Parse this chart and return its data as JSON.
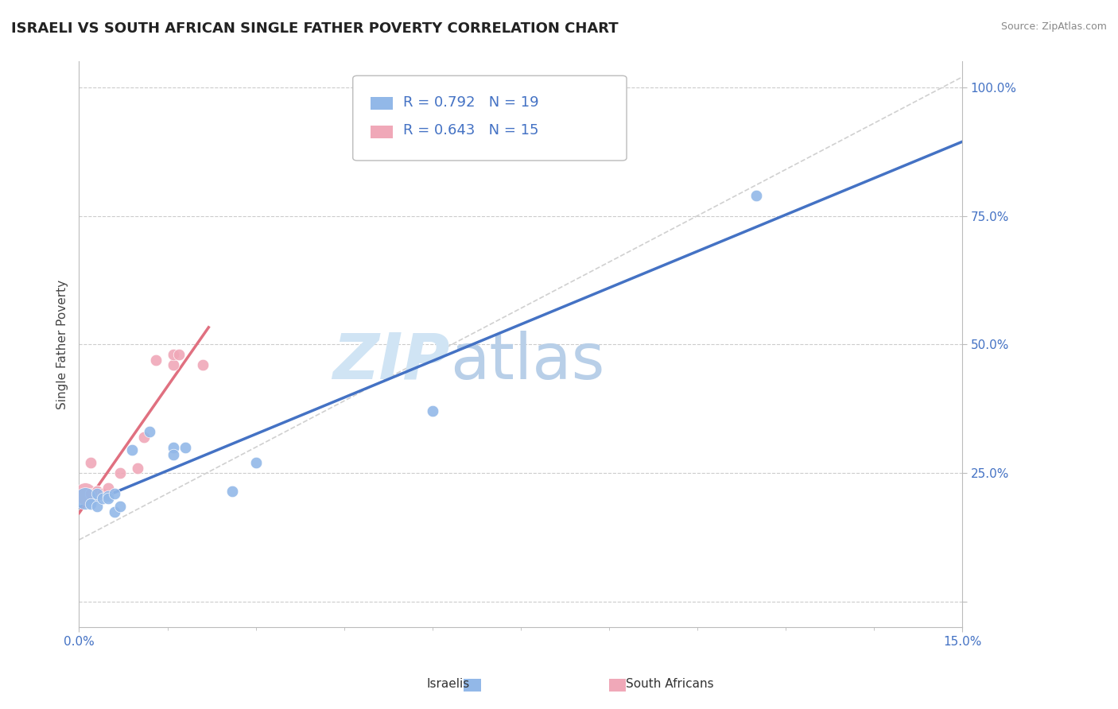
{
  "title": "ISRAELI VS SOUTH AFRICAN SINGLE FATHER POVERTY CORRELATION CHART",
  "source": "Source: ZipAtlas.com",
  "ylabel": "Single Father Poverty",
  "xlim": [
    0.0,
    0.15
  ],
  "ylim": [
    -0.05,
    1.05
  ],
  "yticks": [
    0.0,
    0.25,
    0.5,
    0.75,
    1.0
  ],
  "ytick_labels": [
    "",
    "25.0%",
    "50.0%",
    "75.0%",
    "100.0%"
  ],
  "xtick_labels": [
    "0.0%",
    "15.0%"
  ],
  "legend_r1": "R = 0.792",
  "legend_n1": "N = 19",
  "legend_r2": "R = 0.643",
  "legend_n2": "N = 15",
  "israeli_color": "#92b8e8",
  "south_african_color": "#f0a8b8",
  "trend_line_color_israeli": "#4472c4",
  "trend_line_color_sa": "#e07080",
  "diagonal_color": "#d0d0d0",
  "background": "#ffffff",
  "israeli_points": [
    [
      0.001,
      0.2
    ],
    [
      0.002,
      0.19
    ],
    [
      0.003,
      0.185
    ],
    [
      0.003,
      0.21
    ],
    [
      0.004,
      0.2
    ],
    [
      0.005,
      0.205
    ],
    [
      0.005,
      0.2
    ],
    [
      0.006,
      0.21
    ],
    [
      0.006,
      0.175
    ],
    [
      0.007,
      0.185
    ],
    [
      0.009,
      0.295
    ],
    [
      0.012,
      0.33
    ],
    [
      0.016,
      0.3
    ],
    [
      0.016,
      0.285
    ],
    [
      0.018,
      0.3
    ],
    [
      0.026,
      0.215
    ],
    [
      0.03,
      0.27
    ],
    [
      0.06,
      0.37
    ],
    [
      0.115,
      0.79
    ]
  ],
  "sa_points": [
    [
      0.001,
      0.21
    ],
    [
      0.002,
      0.21
    ],
    [
      0.002,
      0.27
    ],
    [
      0.003,
      0.215
    ],
    [
      0.003,
      0.215
    ],
    [
      0.004,
      0.21
    ],
    [
      0.005,
      0.22
    ],
    [
      0.007,
      0.25
    ],
    [
      0.01,
      0.26
    ],
    [
      0.011,
      0.32
    ],
    [
      0.013,
      0.47
    ],
    [
      0.016,
      0.46
    ],
    [
      0.016,
      0.48
    ],
    [
      0.017,
      0.48
    ],
    [
      0.021,
      0.46
    ]
  ],
  "large_israeli_idx": 0,
  "large_sa_idx": 0,
  "point_size_default": 110,
  "point_size_large": 400,
  "title_fontsize": 13,
  "axis_label_fontsize": 11,
  "tick_fontsize": 11,
  "legend_fontsize": 13,
  "watermark_zip": "ZIP",
  "watermark_atlas": "atlas"
}
